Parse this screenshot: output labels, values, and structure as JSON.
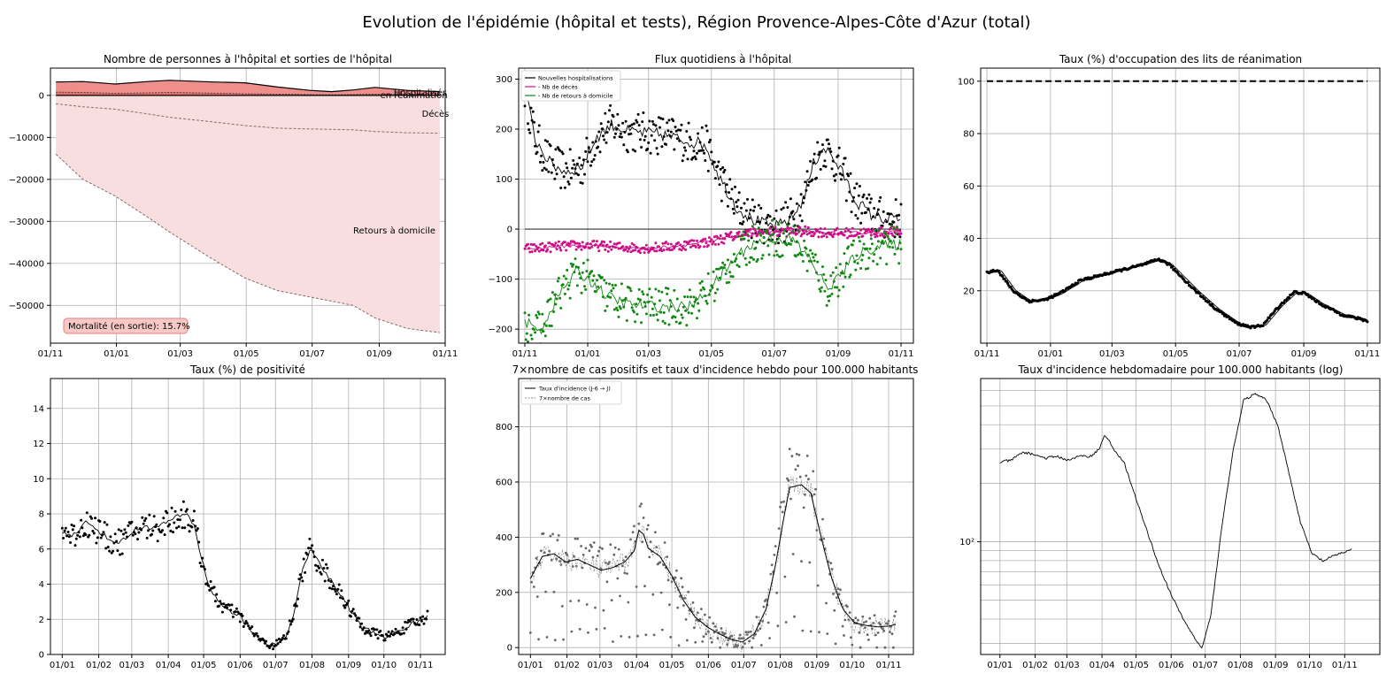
{
  "suptitle": "Evolution de l'épidémie (hôpital et tests), Région Provence-Alpes-Côte d'Azur (total)",
  "chart_data": [
    {
      "id": "p1",
      "type": "area",
      "title": "Nombre de personnes à l'hôpital et sorties de l'hôpital",
      "xlim": [
        0,
        365
      ],
      "ylim": [
        -59000,
        6500
      ],
      "xticks": [
        [
          0,
          "01/11"
        ],
        [
          61,
          "01/01"
        ],
        [
          120,
          "01/03"
        ],
        [
          181,
          "01/05"
        ],
        [
          242,
          "01/07"
        ],
        [
          304,
          "01/09"
        ],
        [
          365,
          "01/11"
        ]
      ],
      "yticks": [
        [
          0,
          "0"
        ],
        [
          -10000,
          "−10000"
        ],
        [
          -20000,
          "−20000"
        ],
        [
          -30000,
          "−30000"
        ],
        [
          -40000,
          "−40000"
        ],
        [
          -50000,
          "−50000"
        ]
      ],
      "x_points": [
        5,
        30,
        60,
        90,
        110,
        150,
        180,
        210,
        240,
        260,
        280,
        300,
        330,
        360
      ],
      "series": [
        {
          "values": [
            3200,
            3300,
            2700,
            3300,
            3600,
            3200,
            3000,
            2000,
            1200,
            900,
            1300,
            1900,
            1200,
            900
          ]
        },
        {
          "values": [
            800,
            700,
            500,
            600,
            700,
            550,
            400,
            300,
            200,
            150,
            200,
            300,
            250,
            150
          ]
        },
        {
          "values": [
            -2000,
            -2700,
            -3300,
            -4400,
            -5200,
            -6300,
            -7200,
            -7800,
            -8000,
            -8100,
            -8200,
            -8600,
            -8900,
            -9000
          ]
        },
        {
          "values": [
            -14000,
            -20000,
            -24000,
            -29000,
            -32500,
            -39000,
            -43500,
            -46500,
            -48000,
            -49000,
            -50000,
            -53000,
            -55500,
            -56500
          ]
        }
      ],
      "annotations": [
        {
          "text": "Hospitalisés",
          "x": 342,
          "y": 800
        },
        {
          "text": "en réanimation",
          "x": 336,
          "y": 200
        },
        {
          "text": "Décès",
          "x": 356,
          "y": -4200
        },
        {
          "text": "Retours à domicile",
          "x": 318,
          "y": -32000
        }
      ],
      "box_text": "Mortalité (en sortie): 15.7%"
    },
    {
      "id": "p2",
      "type": "scatter",
      "title": "Flux quotidiens à l'hôpital",
      "xlim": [
        -6,
        377
      ],
      "ylim": [
        -228,
        322
      ],
      "xticks": [
        [
          0,
          "01/11"
        ],
        [
          61,
          "01/01"
        ],
        [
          120,
          "01/03"
        ],
        [
          181,
          "01/05"
        ],
        [
          242,
          "01/07"
        ],
        [
          304,
          "01/09"
        ],
        [
          365,
          "01/11"
        ]
      ],
      "yticks": [
        [
          300,
          "300"
        ],
        [
          200,
          "200"
        ],
        [
          100,
          "100"
        ],
        [
          0,
          "0"
        ],
        [
          -100,
          "−100"
        ],
        [
          -200,
          "−200"
        ]
      ],
      "legend": [
        "Nouvelles hospitalisations",
        "- Nb de décès",
        "- Nb de retours à domicile"
      ],
      "legend_position": "upper-left",
      "series": [
        {
          "name": "Nouvelles hospitalisations",
          "color": "#000000",
          "keys": [
            [
              0,
              280
            ],
            [
              10,
              180
            ],
            [
              25,
              130
            ],
            [
              40,
              115
            ],
            [
              55,
              125
            ],
            [
              70,
              185
            ],
            [
              85,
              210
            ],
            [
              100,
              195
            ],
            [
              130,
              190
            ],
            [
              160,
              175
            ],
            [
              175,
              170
            ],
            [
              190,
              100
            ],
            [
              205,
              45
            ],
            [
              220,
              20
            ],
            [
              235,
              8
            ],
            [
              245,
              5
            ],
            [
              260,
              25
            ],
            [
              270,
              60
            ],
            [
              280,
              130
            ],
            [
              290,
              165
            ],
            [
              298,
              145
            ],
            [
              310,
              105
            ],
            [
              320,
              60
            ],
            [
              335,
              30
            ],
            [
              350,
              20
            ],
            [
              365,
              22
            ]
          ],
          "noise": 42
        },
        {
          "name": "- Nb de décès",
          "color": "#cc1188",
          "keys": [
            [
              0,
              -40
            ],
            [
              30,
              -35
            ],
            [
              60,
              -32
            ],
            [
              90,
              -36
            ],
            [
              120,
              -38
            ],
            [
              150,
              -33
            ],
            [
              180,
              -25
            ],
            [
              200,
              -15
            ],
            [
              220,
              -8
            ],
            [
              250,
              -5
            ],
            [
              280,
              -5
            ],
            [
              300,
              -8
            ],
            [
              330,
              -7
            ],
            [
              365,
              -5
            ]
          ],
          "noise": 10
        },
        {
          "name": "- Nb de retours à domicile",
          "color": "#118811",
          "keys": [
            [
              0,
              -185
            ],
            [
              15,
              -205
            ],
            [
              30,
              -140
            ],
            [
              50,
              -85
            ],
            [
              65,
              -105
            ],
            [
              80,
              -135
            ],
            [
              100,
              -150
            ],
            [
              130,
              -155
            ],
            [
              160,
              -155
            ],
            [
              175,
              -130
            ],
            [
              190,
              -95
            ],
            [
              205,
              -55
            ],
            [
              220,
              -30
            ],
            [
              240,
              -18
            ],
            [
              260,
              -20
            ],
            [
              280,
              -70
            ],
            [
              293,
              -120
            ],
            [
              305,
              -95
            ],
            [
              320,
              -55
            ],
            [
              340,
              -35
            ],
            [
              365,
              -30
            ]
          ],
          "noise": 38
        }
      ]
    },
    {
      "id": "p3",
      "type": "line",
      "title": "Taux (%) d'occupation des lits de réanimation",
      "xlim": [
        -6,
        377
      ],
      "ylim": [
        0,
        105
      ],
      "xticks": [
        [
          0,
          "01/11"
        ],
        [
          61,
          "01/01"
        ],
        [
          120,
          "01/03"
        ],
        [
          181,
          "01/05"
        ],
        [
          242,
          "01/07"
        ],
        [
          304,
          "01/09"
        ],
        [
          365,
          "01/11"
        ]
      ],
      "yticks": [
        [
          100,
          "100"
        ],
        [
          80,
          "80"
        ],
        [
          60,
          "60"
        ],
        [
          40,
          "40"
        ],
        [
          20,
          "20"
        ]
      ],
      "reference_line": 100,
      "keys": [
        [
          0,
          27
        ],
        [
          10,
          28
        ],
        [
          25,
          20
        ],
        [
          40,
          16
        ],
        [
          55,
          16.5
        ],
        [
          70,
          19
        ],
        [
          90,
          24
        ],
        [
          110,
          26
        ],
        [
          130,
          28
        ],
        [
          150,
          30
        ],
        [
          165,
          32
        ],
        [
          175,
          30
        ],
        [
          185,
          26
        ],
        [
          200,
          20
        ],
        [
          220,
          13
        ],
        [
          240,
          7.5
        ],
        [
          255,
          6
        ],
        [
          265,
          7
        ],
        [
          280,
          14
        ],
        [
          295,
          19.5
        ],
        [
          305,
          19
        ],
        [
          320,
          15
        ],
        [
          340,
          11
        ],
        [
          360,
          9
        ],
        [
          365,
          8.5
        ]
      ]
    },
    {
      "id": "p4",
      "type": "scatter",
      "title": "Taux (%) de positivité",
      "xlim": [
        -10,
        325
      ],
      "ylim": [
        0,
        15.7
      ],
      "xticks": [
        [
          0,
          "01/01"
        ],
        [
          31,
          "01/02"
        ],
        [
          59,
          "01/03"
        ],
        [
          90,
          "01/04"
        ],
        [
          120,
          "01/05"
        ],
        [
          151,
          "01/06"
        ],
        [
          181,
          "01/07"
        ],
        [
          212,
          "01/08"
        ],
        [
          243,
          "01/09"
        ],
        [
          273,
          "01/10"
        ],
        [
          304,
          "01/11"
        ]
      ],
      "yticks": [
        [
          0,
          "0"
        ],
        [
          2,
          "2"
        ],
        [
          4,
          "4"
        ],
        [
          6,
          "6"
        ],
        [
          8,
          "8"
        ],
        [
          10,
          "10"
        ],
        [
          12,
          "12"
        ],
        [
          14,
          "14"
        ]
      ],
      "keys": [
        [
          0,
          7
        ],
        [
          10,
          6.8
        ],
        [
          20,
          7.5
        ],
        [
          30,
          7.1
        ],
        [
          40,
          6.5
        ],
        [
          50,
          6.4
        ],
        [
          60,
          7
        ],
        [
          70,
          7.3
        ],
        [
          80,
          7.2
        ],
        [
          90,
          7.6
        ],
        [
          105,
          8
        ],
        [
          112,
          7.4
        ],
        [
          118,
          5.5
        ],
        [
          125,
          3.8
        ],
        [
          135,
          2.8
        ],
        [
          150,
          2.2
        ],
        [
          160,
          1.4
        ],
        [
          172,
          0.6
        ],
        [
          180,
          0.5
        ],
        [
          190,
          1
        ],
        [
          197,
          2.5
        ],
        [
          203,
          4.5
        ],
        [
          210,
          6
        ],
        [
          215,
          5.5
        ],
        [
          225,
          4.5
        ],
        [
          235,
          3.5
        ],
        [
          245,
          2.5
        ],
        [
          255,
          1.5
        ],
        [
          265,
          1.2
        ],
        [
          275,
          1
        ],
        [
          285,
          1.3
        ],
        [
          295,
          1.7
        ],
        [
          305,
          1.9
        ],
        [
          310,
          2.2
        ]
      ],
      "noise": 0.55
    },
    {
      "id": "p5",
      "type": "line",
      "title": "7×nombre de cas positifs et taux d'incidence hebdo pour 100.000 habitants",
      "xlim": [
        -10,
        325
      ],
      "ylim": [
        -25,
        975
      ],
      "xticks": [
        [
          0,
          "01/01"
        ],
        [
          31,
          "01/02"
        ],
        [
          59,
          "01/03"
        ],
        [
          90,
          "01/04"
        ],
        [
          120,
          "01/05"
        ],
        [
          151,
          "01/06"
        ],
        [
          181,
          "01/07"
        ],
        [
          212,
          "01/08"
        ],
        [
          243,
          "01/09"
        ],
        [
          273,
          "01/10"
        ],
        [
          304,
          "01/11"
        ]
      ],
      "yticks": [
        [
          0,
          "0"
        ],
        [
          200,
          "200"
        ],
        [
          400,
          "400"
        ],
        [
          600,
          "600"
        ],
        [
          800,
          "800"
        ]
      ],
      "legend": [
        "Taux d'incidence (J-6 → J)",
        "7×nombre de cas"
      ],
      "legend_position": "upper-left",
      "keys": [
        [
          0,
          250
        ],
        [
          10,
          330
        ],
        [
          20,
          340
        ],
        [
          30,
          310
        ],
        [
          40,
          320
        ],
        [
          50,
          300
        ],
        [
          60,
          280
        ],
        [
          70,
          290
        ],
        [
          80,
          310
        ],
        [
          88,
          350
        ],
        [
          92,
          425
        ],
        [
          96,
          410
        ],
        [
          100,
          360
        ],
        [
          110,
          330
        ],
        [
          120,
          260
        ],
        [
          130,
          170
        ],
        [
          140,
          110
        ],
        [
          150,
          75
        ],
        [
          160,
          50
        ],
        [
          170,
          30
        ],
        [
          180,
          20
        ],
        [
          190,
          50
        ],
        [
          200,
          140
        ],
        [
          208,
          300
        ],
        [
          215,
          470
        ],
        [
          220,
          580
        ],
        [
          230,
          590
        ],
        [
          238,
          560
        ],
        [
          245,
          430
        ],
        [
          255,
          260
        ],
        [
          265,
          140
        ],
        [
          275,
          90
        ],
        [
          285,
          80
        ],
        [
          295,
          75
        ],
        [
          305,
          78
        ],
        [
          310,
          85
        ]
      ],
      "noise": 55
    },
    {
      "id": "p6",
      "type": "line",
      "title": "Taux d'incidence hebdomadaire pour 100.000 habitants (log)",
      "scale": "log",
      "xlim": [
        -17,
        335
      ],
      "ylim_log10": [
        1.42,
        2.84
      ],
      "xticks": [
        [
          0,
          "01/01"
        ],
        [
          31,
          "01/02"
        ],
        [
          59,
          "01/03"
        ],
        [
          90,
          "01/04"
        ],
        [
          120,
          "01/05"
        ],
        [
          151,
          "01/06"
        ],
        [
          181,
          "01/07"
        ],
        [
          212,
          "01/08"
        ],
        [
          243,
          "01/09"
        ],
        [
          273,
          "01/10"
        ],
        [
          304,
          "01/11"
        ]
      ],
      "yticks": [
        [
          2,
          "10²"
        ]
      ],
      "keys": [
        [
          0,
          2.41
        ],
        [
          10,
          2.42
        ],
        [
          20,
          2.46
        ],
        [
          30,
          2.45
        ],
        [
          40,
          2.43
        ],
        [
          50,
          2.44
        ],
        [
          60,
          2.42
        ],
        [
          70,
          2.44
        ],
        [
          80,
          2.44
        ],
        [
          88,
          2.48
        ],
        [
          92,
          2.55
        ],
        [
          96,
          2.52
        ],
        [
          100,
          2.48
        ],
        [
          110,
          2.4
        ],
        [
          120,
          2.22
        ],
        [
          130,
          2.05
        ],
        [
          140,
          1.88
        ],
        [
          150,
          1.74
        ],
        [
          160,
          1.62
        ],
        [
          170,
          1.52
        ],
        [
          178,
          1.45
        ],
        [
          186,
          1.62
        ],
        [
          195,
          2.05
        ],
        [
          205,
          2.45
        ],
        [
          215,
          2.73
        ],
        [
          225,
          2.76
        ],
        [
          235,
          2.73
        ],
        [
          245,
          2.6
        ],
        [
          255,
          2.35
        ],
        [
          265,
          2.1
        ],
        [
          275,
          1.94
        ],
        [
          285,
          1.9
        ],
        [
          295,
          1.93
        ],
        [
          305,
          1.95
        ],
        [
          310,
          1.96
        ]
      ]
    }
  ]
}
